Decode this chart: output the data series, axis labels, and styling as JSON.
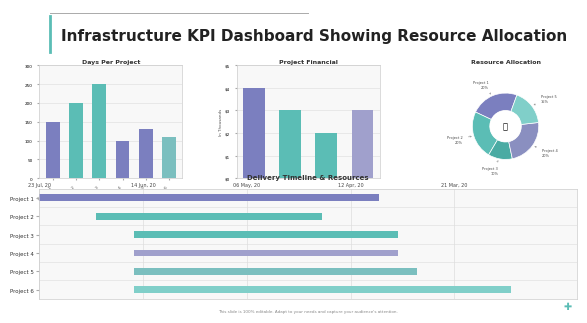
{
  "title": "Infrastructure KPI Dashboard Showing Resource Allocation",
  "title_fontsize": 11,
  "bg_color": "#ffffff",
  "days_title": "Days Per Project",
  "days_categories": [
    "Project 1",
    "Project 2",
    "Project 3",
    "Project 4",
    "Project 5",
    "Project 6"
  ],
  "days_values": [
    150,
    200,
    250,
    100,
    130,
    110
  ],
  "days_colors": [
    "#7b7fbf",
    "#5bbdb5",
    "#5bbdb5",
    "#7b7fbf",
    "#7b7fbf",
    "#7bbfbf"
  ],
  "finance_title": "Project Financial",
  "finance_values": [
    4.0,
    3.0,
    2.0,
    3.0
  ],
  "finance_colors": [
    "#7b7fbf",
    "#5bbdb5",
    "#5bbdb5",
    "#a0a0cc"
  ],
  "finance_ylabel": "In Thousands",
  "finance_yticklabels": [
    "$0",
    "$1",
    "$2",
    "$3",
    "$4",
    "$5"
  ],
  "pie_title": "Resource Allocation",
  "pie_labels": [
    "Project 1\n20%",
    "Project 2\n20%",
    "Project 3\n10%",
    "Project 4\n20%",
    "Project 5\n15%"
  ],
  "pie_values": [
    20,
    20,
    10,
    20,
    15
  ],
  "pie_colors": [
    "#7b7fbf",
    "#5bbdb5",
    "#4aaba3",
    "#8a8fc0",
    "#80cfc9"
  ],
  "pie_startangle": 70,
  "gantt_title": "Delivery Timeline & Resources",
  "gantt_projects": [
    "Project 1",
    "Project 2",
    "Project 3",
    "Project 4",
    "Project 5",
    "Project 6"
  ],
  "gantt_starts": [
    0.0,
    0.3,
    0.5,
    0.5,
    0.5,
    0.5
  ],
  "gantt_ends": [
    1.8,
    1.5,
    1.9,
    1.9,
    2.0,
    2.5
  ],
  "gantt_colors": [
    "#7b7fbf",
    "#5bbdb5",
    "#5bbdb5",
    "#a0a0cc",
    "#7bbfbf",
    "#80cfc9"
  ],
  "gantt_col_labels": [
    "23 Jul, 20",
    "14 Jun, 20",
    "06 May, 20",
    "12 Apr, 20",
    "21 Mar, 20"
  ],
  "gantt_col_positions": [
    0.0,
    0.55,
    1.1,
    1.65,
    2.2
  ],
  "footer_text": "This slide is 100% editable. Adapt to your needs and capture your audience's attention."
}
